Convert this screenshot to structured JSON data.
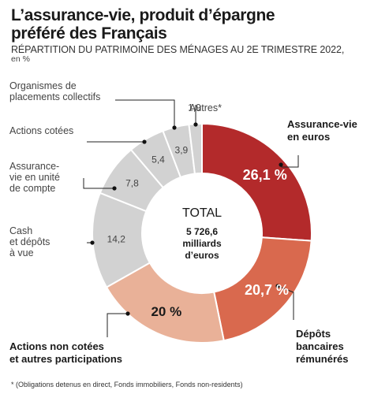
{
  "title_line1": "L’assurance-vie, produit d’épargne",
  "title_line2": "préféré des Français",
  "subtitle": "RÉPARTITION DU PATRIMOINE DES MÉNAGES AU 2E TRIMESTRE 2022,",
  "unit": "en %",
  "center_label": "TOTAL",
  "center_total_lines": [
    "5 726,6",
    "milliards",
    "d’euros"
  ],
  "footnote": "* (Obligations detenus en direct, Fonds immobiliers, Fonds non-residents)",
  "chart_data": {
    "type": "pie",
    "style": "donut",
    "categories": [
      "Assurance-vie en euros",
      "Dépôts bancaires rémunérés",
      "Actions non cotées et autres participations",
      "Cash et dépôts à vue",
      "Assurance-vie en unité de compte",
      "Actions cotées",
      "Organismes de placements collectifs",
      "Autres*"
    ],
    "values": [
      26.1,
      20.7,
      20,
      14.2,
      7.8,
      5.4,
      3.9,
      1.9
    ],
    "value_labels": [
      "26,1 %",
      "20,7 %",
      "20 %",
      "14,2",
      "7,8",
      "5,4",
      "3,9",
      "1,9"
    ],
    "colors": [
      "#b32a2b",
      "#d9694e",
      "#e9b198",
      "#d2d2d2",
      "#d2d2d2",
      "#d2d2d2",
      "#d2d2d2",
      "#d2d2d2"
    ],
    "label_lines": [
      [
        "Assurance-vie",
        "en euros"
      ],
      [
        "Dépôts",
        "bancaires",
        "rémunérés"
      ],
      [
        "Actions non cotées",
        "et autres participations"
      ],
      [
        "Cash",
        "et dépôts",
        "à vue"
      ],
      [
        "Assurance-",
        "vie en unité",
        "de compte"
      ],
      [
        "Actions cotées"
      ],
      [
        "Organismes de",
        "placements collectifs"
      ],
      [
        "Autres*"
      ]
    ]
  }
}
